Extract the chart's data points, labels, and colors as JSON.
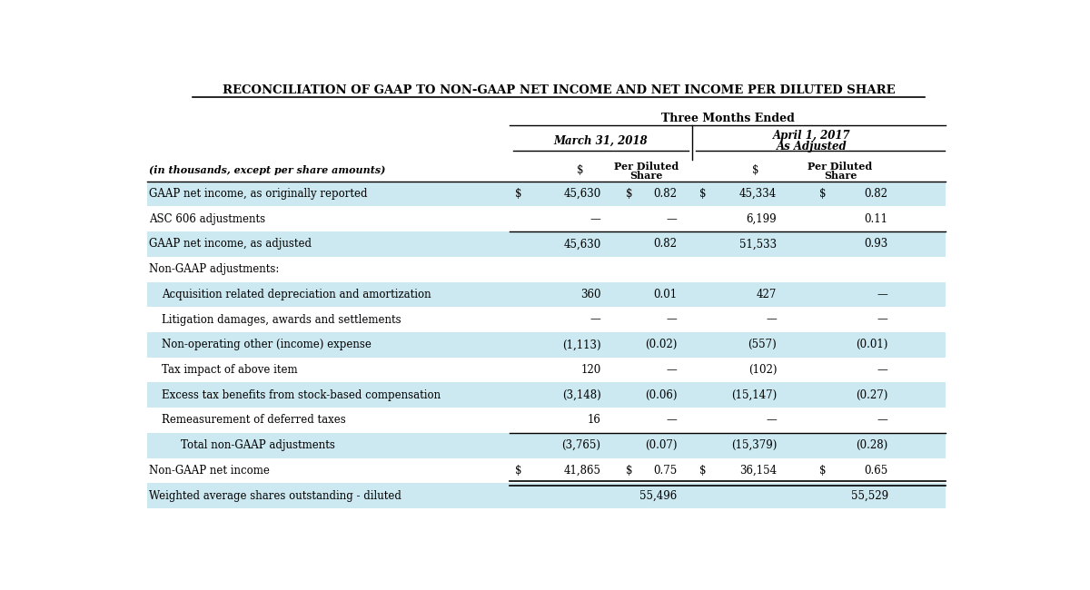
{
  "title": "RECONCILIATION OF GAAP TO NON-GAAP NET INCOME AND NET INCOME PER DILUTED SHARE",
  "header_group": "Three Months Ended",
  "sub_header1": "March 31, 2018",
  "sub_header2_line1": "April 1, 2017",
  "sub_header2_line2": "As Adjusted",
  "col_label": "(in thousands, except per share amounts)",
  "rows": [
    {
      "label": "GAAP net income, as originally reported",
      "d1": "$",
      "v1": "45,630",
      "p1s": "$",
      "p1": "0.82",
      "d2": "$",
      "v2": "45,334",
      "p2s": "$",
      "p2": "0.82",
      "bg": "#cce8f0",
      "bottom_single": false,
      "bottom_double": false,
      "indent": 0
    },
    {
      "label": "ASC 606 adjustments",
      "d1": "",
      "v1": "—",
      "p1s": "",
      "p1": "—",
      "d2": "",
      "v2": "6,199",
      "p2s": "",
      "p2": "0.11",
      "bg": "#ffffff",
      "bottom_single": true,
      "bottom_double": false,
      "indent": 0
    },
    {
      "label": "GAAP net income, as adjusted",
      "d1": "",
      "v1": "45,630",
      "p1s": "",
      "p1": "0.82",
      "d2": "",
      "v2": "51,533",
      "p2s": "",
      "p2": "0.93",
      "bg": "#cce8f0",
      "bottom_single": false,
      "bottom_double": false,
      "indent": 0
    },
    {
      "label": "Non-GAAP adjustments:",
      "d1": "",
      "v1": "",
      "p1s": "",
      "p1": "",
      "d2": "",
      "v2": "",
      "p2s": "",
      "p2": "",
      "bg": "#ffffff",
      "bottom_single": false,
      "bottom_double": false,
      "indent": 0
    },
    {
      "label": "Acquisition related depreciation and amortization",
      "d1": "",
      "v1": "360",
      "p1s": "",
      "p1": "0.01",
      "d2": "",
      "v2": "427",
      "p2s": "",
      "p2": "—",
      "bg": "#cce8f0",
      "bottom_single": false,
      "bottom_double": false,
      "indent": 1
    },
    {
      "label": "Litigation damages, awards and settlements",
      "d1": "",
      "v1": "—",
      "p1s": "",
      "p1": "—",
      "d2": "",
      "v2": "—",
      "p2s": "",
      "p2": "—",
      "bg": "#ffffff",
      "bottom_single": false,
      "bottom_double": false,
      "indent": 1
    },
    {
      "label": "Non-operating other (income) expense",
      "d1": "",
      "v1": "(1,113)",
      "p1s": "",
      "p1": "(0.02)",
      "d2": "",
      "v2": "(557)",
      "p2s": "",
      "p2": "(0.01)",
      "bg": "#cce8f0",
      "bottom_single": false,
      "bottom_double": false,
      "indent": 1
    },
    {
      "label": "Tax impact of above item",
      "d1": "",
      "v1": "120",
      "p1s": "",
      "p1": "—",
      "d2": "",
      "v2": "(102)",
      "p2s": "",
      "p2": "—",
      "bg": "#ffffff",
      "bottom_single": false,
      "bottom_double": false,
      "indent": 1
    },
    {
      "label": "Excess tax benefits from stock-based compensation",
      "d1": "",
      "v1": "(3,148)",
      "p1s": "",
      "p1": "(0.06)",
      "d2": "",
      "v2": "(15,147)",
      "p2s": "",
      "p2": "(0.27)",
      "bg": "#cce8f0",
      "bottom_single": false,
      "bottom_double": false,
      "indent": 1
    },
    {
      "label": "Remeasurement of deferred taxes",
      "d1": "",
      "v1": "16",
      "p1s": "",
      "p1": "—",
      "d2": "",
      "v2": "—",
      "p2s": "",
      "p2": "—",
      "bg": "#ffffff",
      "bottom_single": true,
      "bottom_double": false,
      "indent": 1
    },
    {
      "label": "Total non-GAAP adjustments",
      "d1": "",
      "v1": "(3,765)",
      "p1s": "",
      "p1": "(0.07)",
      "d2": "",
      "v2": "(15,379)",
      "p2s": "",
      "p2": "(0.28)",
      "bg": "#cce8f0",
      "bottom_single": false,
      "bottom_double": false,
      "indent": 2
    },
    {
      "label": "Non-GAAP net income",
      "d1": "$",
      "v1": "41,865",
      "p1s": "$",
      "p1": "0.75",
      "d2": "$",
      "v2": "36,154",
      "p2s": "$",
      "p2": "0.65",
      "bg": "#ffffff",
      "bottom_single": false,
      "bottom_double": true,
      "indent": 0
    },
    {
      "label": "Weighted average shares outstanding - diluted",
      "d1": "",
      "v1": "",
      "p1s": "",
      "p1": "55,496",
      "d2": "",
      "v2": "",
      "p2s": "",
      "p2": "55,529",
      "bg": "#cce8f0",
      "bottom_single": false,
      "bottom_double": false,
      "indent": 0
    }
  ]
}
